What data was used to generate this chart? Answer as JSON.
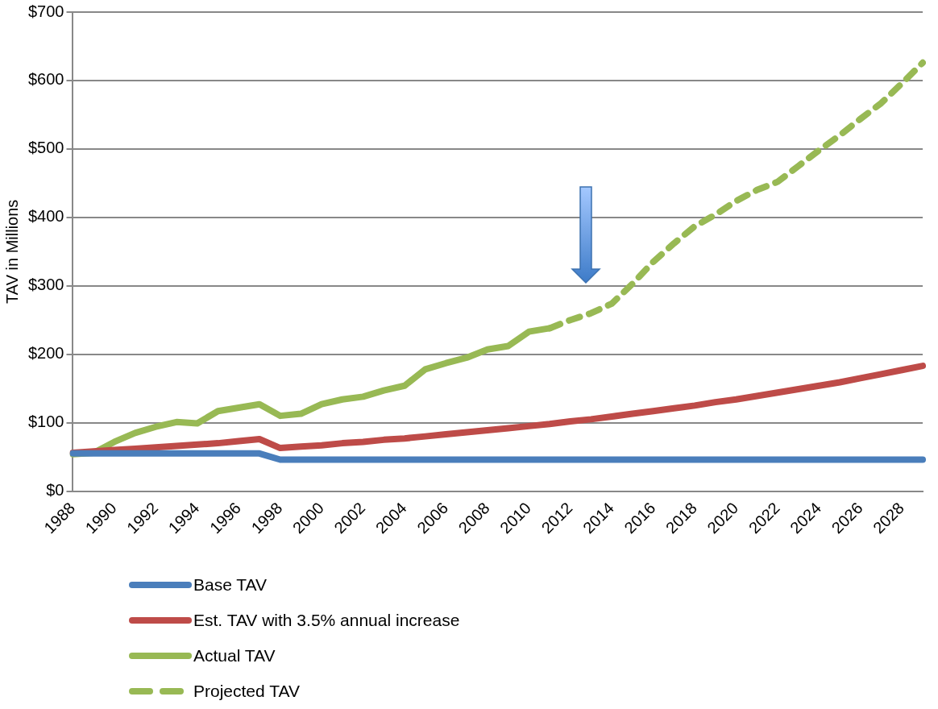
{
  "chart_data": {
    "type": "line",
    "ylabel": "TAV in Millions",
    "categories": [
      "1988",
      null,
      "1990",
      null,
      "1992",
      null,
      "1994",
      null,
      "1996",
      null,
      "1998",
      null,
      "2000",
      null,
      "2002",
      null,
      "2004",
      null,
      "2006",
      null,
      "2008",
      null,
      "2010",
      null,
      "2012",
      null,
      "2014",
      null,
      "2016",
      null,
      "2018",
      null,
      "2020",
      null,
      "2022",
      null,
      "2024",
      null,
      "2026",
      null,
      "2028",
      null
    ],
    "series": [
      {
        "name": "Base TAV",
        "color": "#4a7ebb",
        "values": [
          55,
          55,
          55,
          55,
          55,
          55,
          55,
          55,
          55,
          55,
          46,
          46,
          46,
          46,
          46,
          46,
          46,
          46,
          46,
          46,
          46,
          46,
          46,
          46,
          46,
          46,
          46,
          46,
          46,
          46,
          46,
          46,
          46,
          46,
          46,
          46,
          46,
          46,
          46,
          46,
          46,
          46
        ]
      },
      {
        "name": "Est. TAV with 3.5% annual increase",
        "color": "#be4b48",
        "values": [
          56,
          58,
          60,
          62,
          64,
          66,
          68,
          70,
          73,
          76,
          63,
          65,
          67,
          70,
          72,
          75,
          77,
          80,
          83,
          86,
          89,
          92,
          95,
          98,
          102,
          105,
          109,
          113,
          117,
          121,
          125,
          130,
          134,
          139,
          144,
          149,
          154,
          159,
          165,
          171,
          177,
          183
        ]
      },
      {
        "name": "Actual TAV",
        "color": "#98b954",
        "values": [
          54,
          56,
          72,
          85,
          94,
          101,
          99,
          117,
          122,
          127,
          110,
          113,
          127,
          134,
          138,
          147,
          154,
          178,
          187,
          195,
          207,
          212,
          233,
          238,
          null,
          null,
          null,
          null,
          null,
          null,
          null,
          null,
          null,
          null,
          null,
          null,
          null,
          null,
          null,
          null,
          null,
          null
        ]
      },
      {
        "name": "Projected TAV",
        "color": "#98b954",
        "line_style": "dashed",
        "values": [
          null,
          null,
          null,
          null,
          null,
          null,
          null,
          null,
          null,
          null,
          null,
          null,
          null,
          null,
          null,
          null,
          null,
          null,
          null,
          null,
          null,
          null,
          null,
          238,
          250,
          260,
          274,
          303,
          335,
          362,
          387,
          404,
          424,
          440,
          452,
          475,
          498,
          520,
          544,
          567,
          596,
          626
        ]
      }
    ],
    "ylim": [
      0,
      700
    ],
    "yticks": [
      {
        "value": 0,
        "label": "$0"
      },
      {
        "value": 100,
        "label": "$100"
      },
      {
        "value": 200,
        "label": "$200"
      },
      {
        "value": 300,
        "label": "$300"
      },
      {
        "value": 400,
        "label": "$400"
      },
      {
        "value": 500,
        "label": "$500"
      },
      {
        "value": 600,
        "label": "$600"
      },
      {
        "value": 700,
        "label": "$700"
      }
    ],
    "grid": "y",
    "legend": "bottom",
    "marker": "none"
  }
}
